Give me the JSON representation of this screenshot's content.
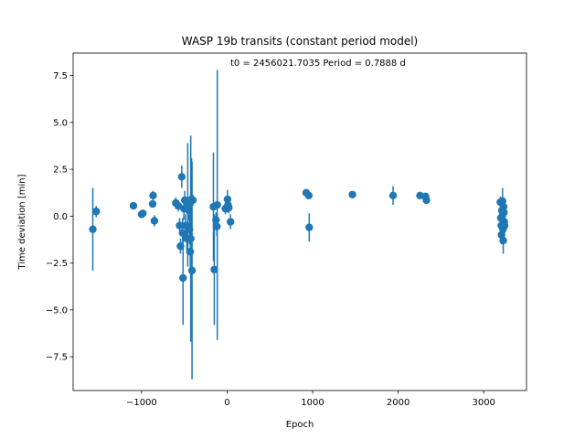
{
  "chart_data": {
    "type": "scatter",
    "title": "WASP 19b transits (constant period model)",
    "xlabel": "Epoch",
    "ylabel": "Time deviation [min]",
    "annotation": "t0 = 2456021.7035 Period = 0.7888 d",
    "xlim": [
      -1800,
      3500
    ],
    "ylim": [
      -9.3,
      8.7
    ],
    "xticks": [
      -1000,
      0,
      1000,
      2000,
      3000
    ],
    "xtick_labels": [
      "−1000",
      "0",
      "1000",
      "2000",
      "3000"
    ],
    "yticks": [
      -7.5,
      -5.0,
      -2.5,
      0.0,
      2.5,
      5.0,
      7.5
    ],
    "ytick_labels": [
      "−7.5",
      "−5.0",
      "−2.5",
      "0.0",
      "2.5",
      "5.0",
      "7.5"
    ],
    "grid": false,
    "color": "#1f77b4",
    "series": [
      {
        "points": [
          {
            "x": -1570,
            "y": -0.7,
            "err": 2.2
          },
          {
            "x": -1530,
            "y": 0.25,
            "err": 0.3
          },
          {
            "x": -1095,
            "y": 0.55,
            "err": 0.15
          },
          {
            "x": -1000,
            "y": 0.1,
            "err": 0.15
          },
          {
            "x": -985,
            "y": 0.15,
            "err": 0.15
          },
          {
            "x": -865,
            "y": 1.1,
            "err": 0.25
          },
          {
            "x": -870,
            "y": 0.65,
            "err": 0.15
          },
          {
            "x": -850,
            "y": -0.25,
            "err": 0.3
          },
          {
            "x": -600,
            "y": 0.7,
            "err": 0.3
          },
          {
            "x": -570,
            "y": 0.55,
            "err": 0.3
          },
          {
            "x": -555,
            "y": -0.5,
            "err": 0.4
          },
          {
            "x": -545,
            "y": -1.6,
            "err": 0.4
          },
          {
            "x": -530,
            "y": 2.1,
            "err": 0.6
          },
          {
            "x": -520,
            "y": -0.9,
            "err": 0.8
          },
          {
            "x": -515,
            "y": -3.3,
            "err": 2.5
          },
          {
            "x": -505,
            "y": 0.4,
            "err": 0.6
          },
          {
            "x": -495,
            "y": 0.85,
            "err": 0.5
          },
          {
            "x": -485,
            "y": -0.5,
            "err": 0.6
          },
          {
            "x": -470,
            "y": -1.2,
            "err": 0.8
          },
          {
            "x": -460,
            "y": 0.6,
            "err": 3.3
          },
          {
            "x": -450,
            "y": 0.3,
            "err": 0.5
          },
          {
            "x": -440,
            "y": -0.7,
            "err": 0.8
          },
          {
            "x": -430,
            "y": -1.9,
            "err": 1.0
          },
          {
            "x": -425,
            "y": -1.2,
            "err": 5.5
          },
          {
            "x": -415,
            "y": 0.9,
            "err": 2.2
          },
          {
            "x": -410,
            "y": -2.9,
            "err": 5.8
          },
          {
            "x": -400,
            "y": 0.85,
            "err": 0.3
          },
          {
            "x": -160,
            "y": 0.5,
            "err": 2.9
          },
          {
            "x": -150,
            "y": -2.85,
            "err": 2.95
          },
          {
            "x": -130,
            "y": -0.2,
            "err": 0.4
          },
          {
            "x": -120,
            "y": -0.55,
            "err": 0.5
          },
          {
            "x": -115,
            "y": 0.6,
            "err": 7.2
          },
          {
            "x": -20,
            "y": 0.4,
            "err": 0.3
          },
          {
            "x": 5,
            "y": 0.9,
            "err": 0.5
          },
          {
            "x": 10,
            "y": 0.6,
            "err": 0.4
          },
          {
            "x": 20,
            "y": 0.45,
            "err": 0.3
          },
          {
            "x": 40,
            "y": -0.3,
            "err": 0.4
          },
          {
            "x": 925,
            "y": 1.25,
            "err": 0.15
          },
          {
            "x": 955,
            "y": 1.1,
            "err": 0.15
          },
          {
            "x": 960,
            "y": -0.6,
            "err": 0.75
          },
          {
            "x": 1465,
            "y": 1.15,
            "err": 0.15
          },
          {
            "x": 1940,
            "y": 1.1,
            "err": 0.5
          },
          {
            "x": 2255,
            "y": 1.1,
            "err": 0.15
          },
          {
            "x": 2320,
            "y": 1.05,
            "err": 0.15
          },
          {
            "x": 2330,
            "y": 0.85,
            "err": 0.15
          },
          {
            "x": 3195,
            "y": 0.75,
            "err": 0.3
          },
          {
            "x": 3200,
            "y": -0.1,
            "err": 0.5
          },
          {
            "x": 3205,
            "y": -0.5,
            "err": 0.5
          },
          {
            "x": 3208,
            "y": -1.0,
            "err": 0.5
          },
          {
            "x": 3212,
            "y": 0.3,
            "err": 0.6
          },
          {
            "x": 3215,
            "y": 0.0,
            "err": 0.6
          },
          {
            "x": 3220,
            "y": 0.8,
            "err": 0.7
          },
          {
            "x": 3225,
            "y": -0.7,
            "err": 0.7
          },
          {
            "x": 3228,
            "y": -1.3,
            "err": 0.7
          },
          {
            "x": 3232,
            "y": 0.5,
            "err": 0.5
          },
          {
            "x": 3236,
            "y": 0.2,
            "err": 0.5
          },
          {
            "x": 3240,
            "y": -0.3,
            "err": 0.5
          },
          {
            "x": 3244,
            "y": -0.5,
            "err": 0.4
          }
        ]
      }
    ]
  }
}
